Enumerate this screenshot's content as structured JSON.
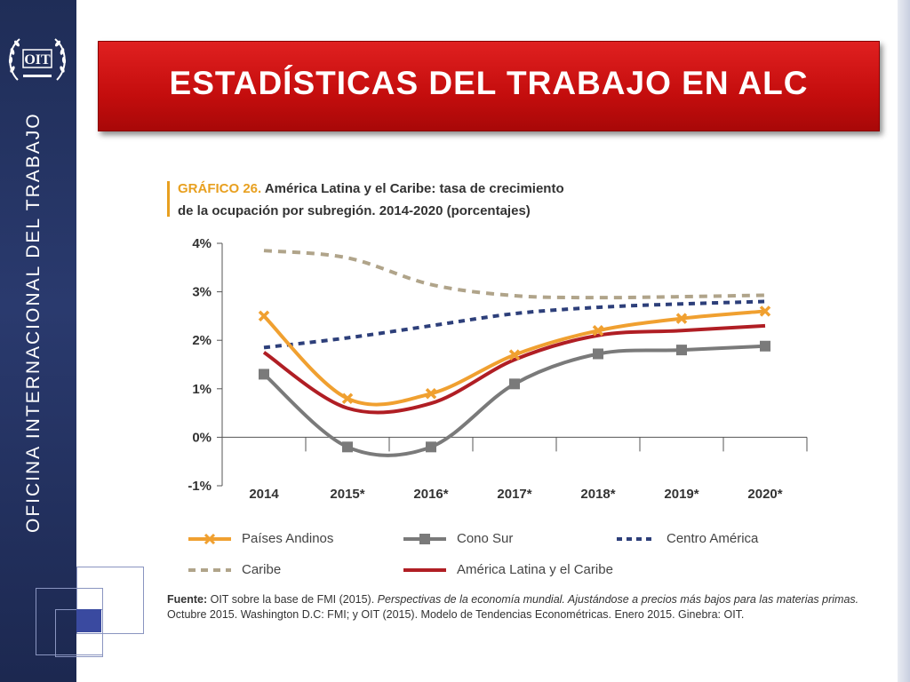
{
  "sidebar": {
    "vertical_text": "OFICINA INTERNACIONAL DEL TRABAJO",
    "logo_text": "OIT",
    "logo_icon": "oit-laurel-logo-icon"
  },
  "header": {
    "title": "ESTADÍSTICAS DEL TRABAJO EN ALC"
  },
  "chart_header": {
    "label": "GRÁFICO 26.",
    "title_line1": "América Latina y el Caribe: tasa de crecimiento",
    "title_line2": "de la ocupación por subregión. 2014-2020 (porcentajes)"
  },
  "chart_data": {
    "type": "line",
    "title": "GRÁFICO 26. América Latina y el Caribe: tasa de crecimiento de la ocupación por subregión. 2014-2020 (porcentajes)",
    "categories": [
      "2014",
      "2015*",
      "2016*",
      "2017*",
      "2018*",
      "2019*",
      "2020*"
    ],
    "y_tick_labels": [
      "4%",
      "3%",
      "2%",
      "1%",
      "0%",
      "-1%"
    ],
    "y_ticks": [
      4,
      3,
      2,
      1,
      0,
      -1
    ],
    "ylim": [
      -1,
      4
    ],
    "grid": false,
    "legend_position": "bottom",
    "series": [
      {
        "name": "Países Andinos",
        "color": "#f0a030",
        "style": "solid",
        "marker": "x",
        "values": [
          2.5,
          0.8,
          0.9,
          1.7,
          2.2,
          2.45,
          2.6
        ]
      },
      {
        "name": "Cono Sur",
        "color": "#7a7a7a",
        "style": "solid",
        "marker": "square",
        "values": [
          1.3,
          -0.2,
          -0.2,
          1.1,
          1.72,
          1.8,
          1.88
        ]
      },
      {
        "name": "Centro América",
        "color": "#2d3f7a",
        "style": "dotted",
        "marker": "none",
        "values": [
          1.85,
          2.05,
          2.3,
          2.55,
          2.68,
          2.75,
          2.8
        ]
      },
      {
        "name": "Caribe",
        "color": "#b0a48a",
        "style": "dashed",
        "marker": "none",
        "values": [
          3.85,
          3.7,
          3.15,
          2.92,
          2.88,
          2.9,
          2.93
        ]
      },
      {
        "name": "América Latina y el Caribe",
        "color": "#b01e24",
        "style": "solid",
        "marker": "none",
        "values": [
          1.75,
          0.6,
          0.7,
          1.6,
          2.1,
          2.2,
          2.3
        ]
      }
    ]
  },
  "legend": {
    "andinos": "Países Andinos",
    "cono_sur": "Cono Sur",
    "centro_america": "Centro América",
    "caribe": "Caribe",
    "alc": "América Latina y el Caribe"
  },
  "source": {
    "label": "Fuente:",
    "text1": " OIT sobre la base de FMI (2015). ",
    "italic": "Perspectivas de la economía mundial. Ajustándose a precios más bajos para las materias primas.",
    "text2": " Octubre 2015. Washington D.C: FMI; y OIT (2015). Modelo de Tendencias Econométricas. Enero 2015. Ginebra: OIT."
  }
}
